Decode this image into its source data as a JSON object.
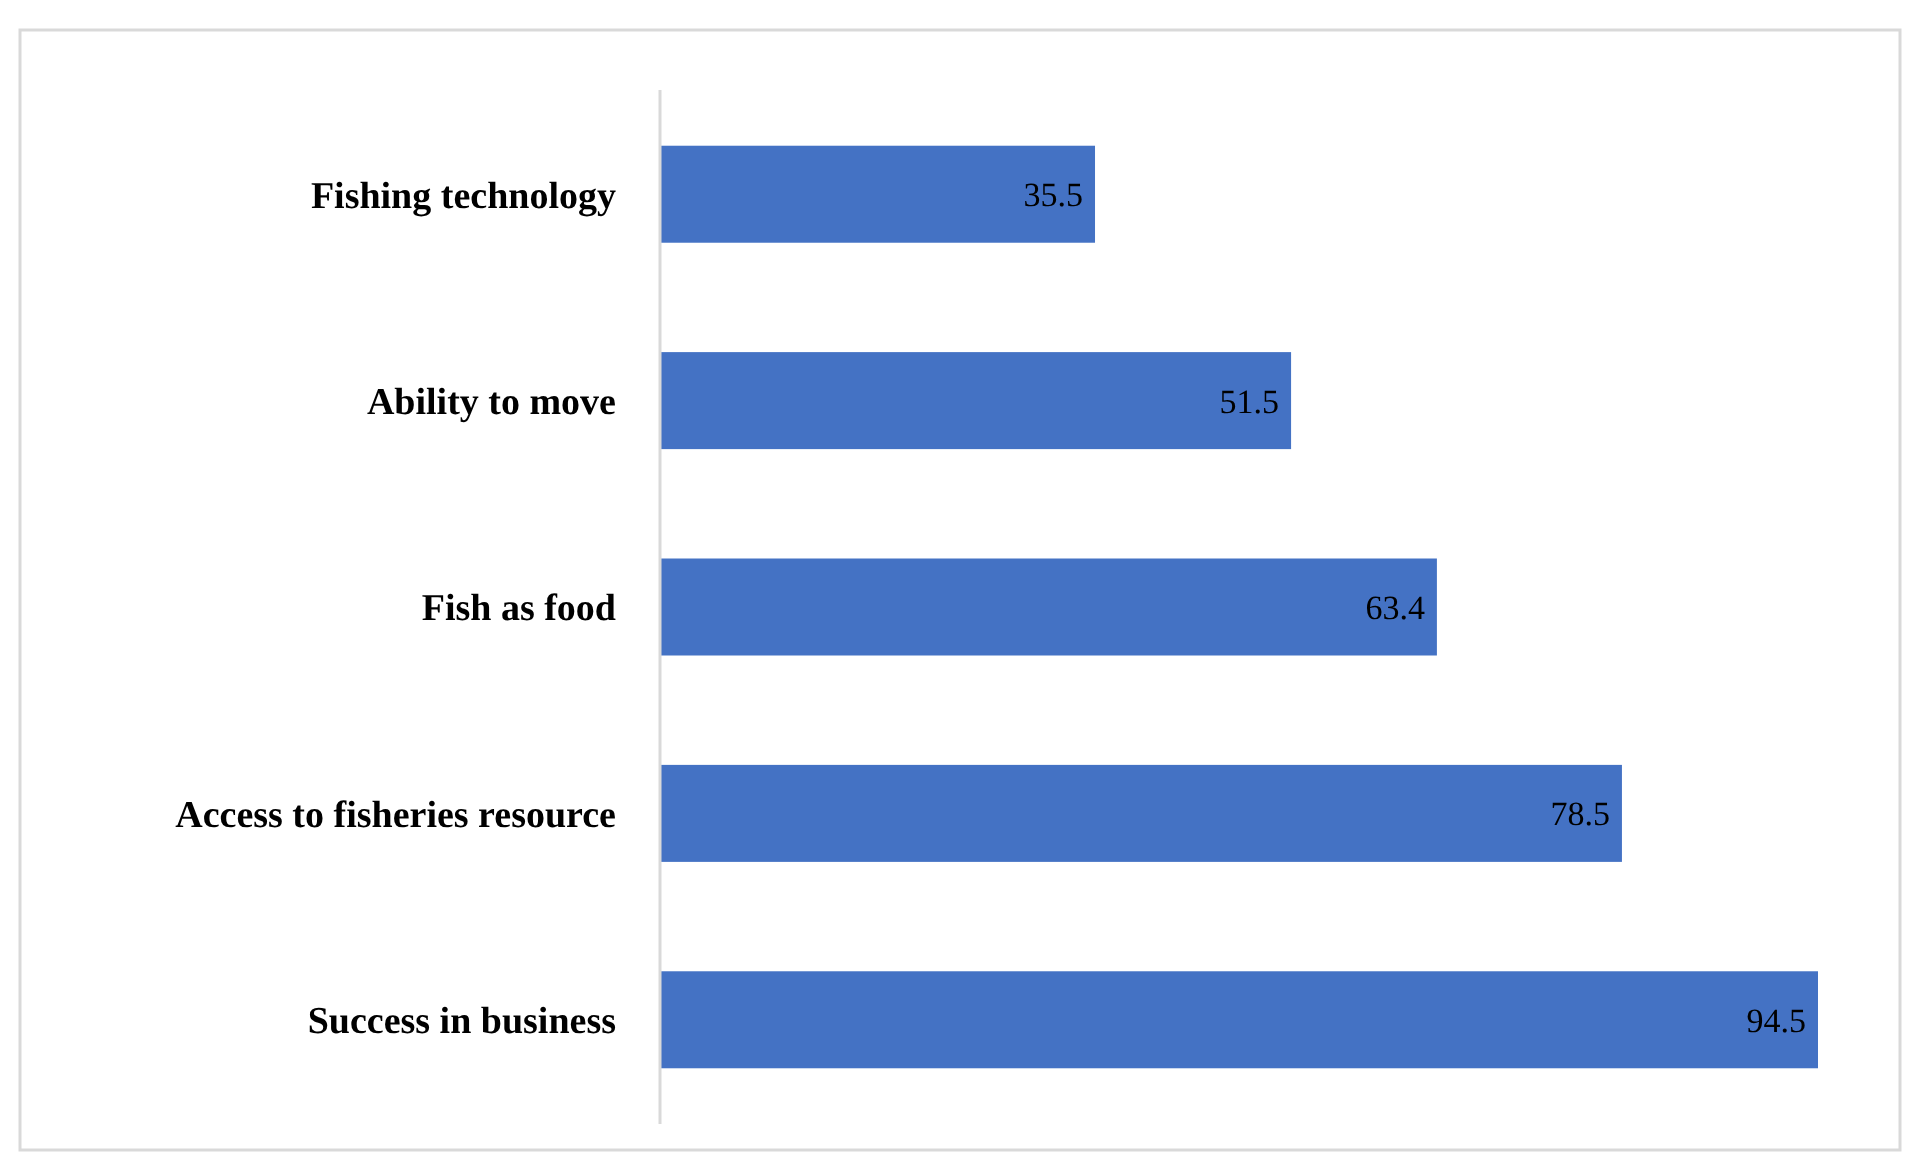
{
  "chart_data": {
    "type": "bar",
    "orientation": "horizontal",
    "categories": [
      "Fishing technology",
      "Ability to move",
      "Fish as food",
      "Access to fisheries resource",
      "Success in business"
    ],
    "values": [
      35.5,
      51.5,
      63.4,
      78.5,
      94.5
    ],
    "color": "#4472c4",
    "data_labels": true,
    "tick_labels": "y"
  }
}
